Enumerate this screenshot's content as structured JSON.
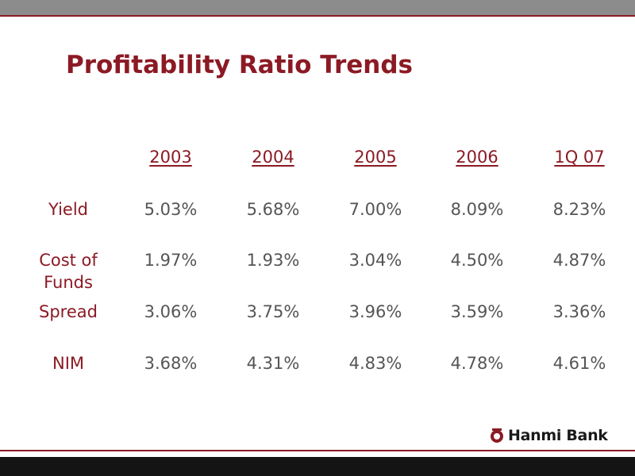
{
  "title": "Profitability Ratio Trends",
  "columns": [
    "2003",
    "2004",
    "2005",
    "2006",
    "1Q 07"
  ],
  "rows": [
    {
      "label": "Yield",
      "values": [
        "5.03%",
        "5.68%",
        "7.00%",
        "8.09%",
        "8.23%"
      ]
    },
    {
      "label": "Cost of Funds",
      "values": [
        "1.97%",
        "1.93%",
        "3.04%",
        "4.50%",
        "4.87%"
      ]
    },
    {
      "label": "Spread",
      "values": [
        "3.06%",
        "3.75%",
        "3.96%",
        "3.59%",
        "3.36%"
      ]
    },
    {
      "label": "NIM",
      "values": [
        "3.68%",
        "4.31%",
        "4.83%",
        "4.78%",
        "4.61%"
      ]
    }
  ],
  "logo": {
    "text": "Hanmi Bank",
    "icon": "hanmi-emblem-icon",
    "color": "#8b1a24"
  },
  "colors": {
    "accent": "#8b1a24",
    "value_text": "#555555",
    "top_bar": "#8c8c8c",
    "bottom_bar": "#141414"
  }
}
